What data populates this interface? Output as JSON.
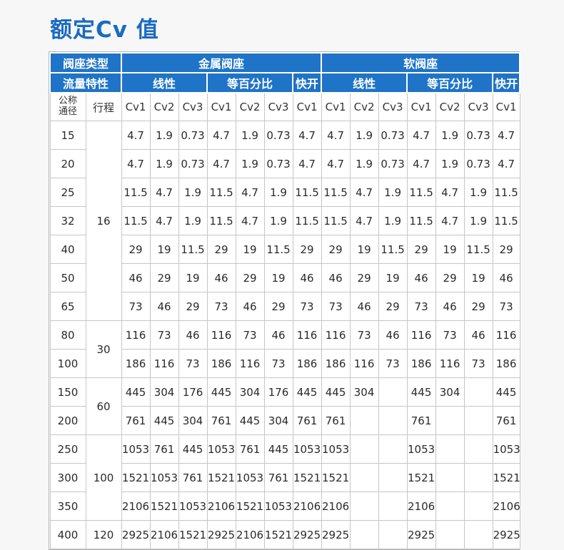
{
  "page": {
    "title": "额定Cv 值",
    "accent_blue": "#1f74c8",
    "title_color": "#1a6bc2"
  },
  "table": {
    "header": {
      "seat_type_label": "阀座类型",
      "flow_label": "流量特性",
      "metal_seat": "金属阀座",
      "soft_seat": "软阀座",
      "linear": "线性",
      "equal_percentage": "等百分比",
      "quick_open": "快开",
      "dn_label_line1": "公称",
      "dn_label_line2": "通径",
      "stroke_label": "行程",
      "cv_labels": [
        "Cv1",
        "Cv2",
        "Cv3",
        "Cv1",
        "Cv2",
        "Cv3",
        "Cv1",
        "Cv1",
        "Cv2",
        "Cv3",
        "Cv1",
        "Cv2",
        "Cv3",
        "Cv1"
      ]
    },
    "rows": [
      {
        "dn": "15",
        "stroke": "16",
        "stroke_span": 7,
        "values": [
          "4.7",
          "1.9",
          "0.73",
          "4.7",
          "1.9",
          "0.73",
          "4.7",
          "4.7",
          "1.9",
          "0.73",
          "4.7",
          "1.9",
          "0.73",
          "4.7"
        ]
      },
      {
        "dn": "20",
        "values": [
          "4.7",
          "1.9",
          "0.73",
          "4.7",
          "1.9",
          "0.73",
          "4.7",
          "4.7",
          "1.9",
          "0.73",
          "4.7",
          "1.9",
          "0.73",
          "4.7"
        ]
      },
      {
        "dn": "25",
        "values": [
          "11.5",
          "4.7",
          "1.9",
          "11.5",
          "4.7",
          "1.9",
          "11.5",
          "11.5",
          "4.7",
          "1.9",
          "11.5",
          "4.7",
          "1.9",
          "11.5"
        ]
      },
      {
        "dn": "32",
        "values": [
          "11.5",
          "4.7",
          "1.9",
          "11.5",
          "4.7",
          "1.9",
          "11.5",
          "11.5",
          "4.7",
          "1.9",
          "11.5",
          "4.7",
          "1.9",
          "11.5"
        ]
      },
      {
        "dn": "40",
        "values": [
          "29",
          "19",
          "11.5",
          "29",
          "19",
          "11.5",
          "29",
          "29",
          "19",
          "11.5",
          "29",
          "19",
          "11.5",
          "29"
        ]
      },
      {
        "dn": "50",
        "values": [
          "46",
          "29",
          "19",
          "46",
          "29",
          "19",
          "46",
          "46",
          "29",
          "19",
          "46",
          "29",
          "19",
          "46"
        ]
      },
      {
        "dn": "65",
        "values": [
          "73",
          "46",
          "29",
          "73",
          "46",
          "29",
          "73",
          "73",
          "46",
          "29",
          "73",
          "46",
          "29",
          "73"
        ]
      },
      {
        "dn": "80",
        "stroke": "30",
        "stroke_span": 2,
        "values": [
          "116",
          "73",
          "46",
          "116",
          "73",
          "46",
          "116",
          "116",
          "73",
          "46",
          "116",
          "73",
          "46",
          "116"
        ]
      },
      {
        "dn": "100",
        "values": [
          "186",
          "116",
          "73",
          "186",
          "116",
          "73",
          "186",
          "186",
          "116",
          "73",
          "186",
          "116",
          "73",
          "186"
        ]
      },
      {
        "dn": "150",
        "stroke": "60",
        "stroke_span": 2,
        "values": [
          "445",
          "304",
          "176",
          "445",
          "304",
          "176",
          "445",
          "445",
          "304",
          "",
          "445",
          "304",
          "",
          "445"
        ]
      },
      {
        "dn": "200",
        "values": [
          "761",
          "445",
          "304",
          "761",
          "445",
          "304",
          "761",
          "761",
          "",
          "",
          "761",
          "",
          "",
          "761"
        ]
      },
      {
        "dn": "250",
        "stroke": "100",
        "stroke_span": 3,
        "values": [
          "1053",
          "761",
          "445",
          "1053",
          "761",
          "445",
          "1053",
          "1053",
          "",
          "",
          "1053",
          "",
          "",
          "1053"
        ]
      },
      {
        "dn": "300",
        "values": [
          "1521",
          "1053",
          "761",
          "1521",
          "1053",
          "761",
          "1521",
          "1521",
          "",
          "",
          "1521",
          "",
          "",
          "1521"
        ]
      },
      {
        "dn": "350",
        "values": [
          "2106",
          "1521",
          "1053",
          "2106",
          "1521",
          "1053",
          "2106",
          "2106",
          "",
          "",
          "2106",
          "",
          "",
          "2106"
        ]
      },
      {
        "dn": "400",
        "stroke": "120",
        "stroke_span": 1,
        "values": [
          "2925",
          "2106",
          "1521",
          "2925",
          "2106",
          "1521",
          "2925",
          "2925",
          "",
          "",
          "2925",
          "",
          "",
          "2925"
        ]
      }
    ]
  }
}
